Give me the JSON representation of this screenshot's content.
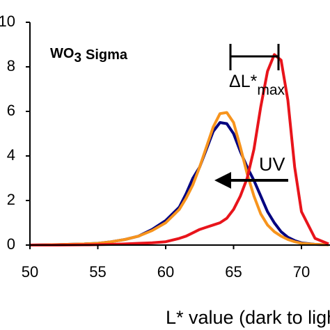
{
  "chart_data": {
    "type": "line",
    "xlabel": "L* value (dark to light)",
    "annotations": {
      "sample": "WO",
      "sample_sub": "3",
      "sample_rest": "Sigma",
      "delta": "ΔL*",
      "delta_sub": "max",
      "arrow": "UV"
    },
    "x": [
      50,
      52,
      54,
      55,
      56,
      57,
      58,
      59,
      60,
      61,
      61.5,
      62,
      62.5,
      63,
      63.5,
      64,
      64.5,
      65,
      65.5,
      66,
      66.5,
      67,
      67.5,
      68,
      68.5,
      69,
      69.5,
      70,
      71,
      72
    ],
    "series": [
      {
        "name": "navy",
        "color": "#000080",
        "values": [
          0,
          0.02,
          0.05,
          0.08,
          0.15,
          0.25,
          0.4,
          0.7,
          1.1,
          1.7,
          2.3,
          3.0,
          3.5,
          4.3,
          5.1,
          5.5,
          5.45,
          5.0,
          4.2,
          3.5,
          2.9,
          2.2,
          1.5,
          1.0,
          0.6,
          0.35,
          0.2,
          0.1,
          0.03,
          0.01
        ]
      },
      {
        "name": "orange",
        "color": "#f7941d",
        "values": [
          0,
          0.02,
          0.05,
          0.08,
          0.15,
          0.25,
          0.4,
          0.65,
          1.0,
          1.6,
          2.1,
          2.7,
          3.5,
          4.4,
          5.3,
          5.9,
          5.95,
          5.5,
          4.4,
          3.2,
          2.2,
          1.4,
          0.9,
          0.6,
          0.4,
          0.25,
          0.15,
          0.08,
          0.03,
          0.01
        ]
      },
      {
        "name": "red",
        "color": "#e8141b",
        "values": [
          0,
          0,
          0.01,
          0.02,
          0.03,
          0.05,
          0.08,
          0.1,
          0.15,
          0.3,
          0.4,
          0.55,
          0.7,
          0.8,
          0.9,
          1.0,
          1.2,
          1.6,
          2.2,
          3.0,
          4.3,
          6.2,
          7.8,
          8.55,
          8.3,
          6.5,
          3.5,
          1.5,
          0.3,
          0.05
        ]
      }
    ],
    "xlim": [
      50,
      72
    ],
    "ylim": [
      0,
      10
    ],
    "xticks": [
      50,
      55,
      60,
      65,
      70
    ],
    "yticks": [
      0,
      2,
      4,
      6,
      8,
      10
    ]
  }
}
